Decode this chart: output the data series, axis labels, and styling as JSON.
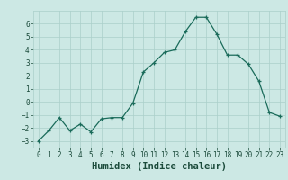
{
  "x": [
    0,
    1,
    2,
    3,
    4,
    5,
    6,
    7,
    8,
    9,
    10,
    11,
    12,
    13,
    14,
    15,
    16,
    17,
    18,
    19,
    20,
    21,
    22,
    23
  ],
  "y": [
    -3.0,
    -2.2,
    -1.2,
    -2.2,
    -1.7,
    -2.3,
    -1.3,
    -1.2,
    -1.2,
    -0.1,
    2.3,
    3.0,
    3.8,
    4.0,
    5.4,
    6.5,
    6.5,
    5.2,
    3.6,
    3.6,
    2.9,
    1.6,
    -0.8,
    -1.1
  ],
  "xlabel": "Humidex (Indice chaleur)",
  "xlim": [
    -0.5,
    23.5
  ],
  "ylim": [
    -3.5,
    7.0
  ],
  "yticks": [
    -3,
    -2,
    -1,
    0,
    1,
    2,
    3,
    4,
    5,
    6
  ],
  "xticks": [
    0,
    1,
    2,
    3,
    4,
    5,
    6,
    7,
    8,
    9,
    10,
    11,
    12,
    13,
    14,
    15,
    16,
    17,
    18,
    19,
    20,
    21,
    22,
    23
  ],
  "line_color": "#1a6b5a",
  "marker": "+",
  "bg_color": "#cce8e4",
  "grid_color": "#aacfca",
  "label_color": "#1a4a3a",
  "tick_fontsize": 5.5,
  "xlabel_fontsize": 7.5
}
